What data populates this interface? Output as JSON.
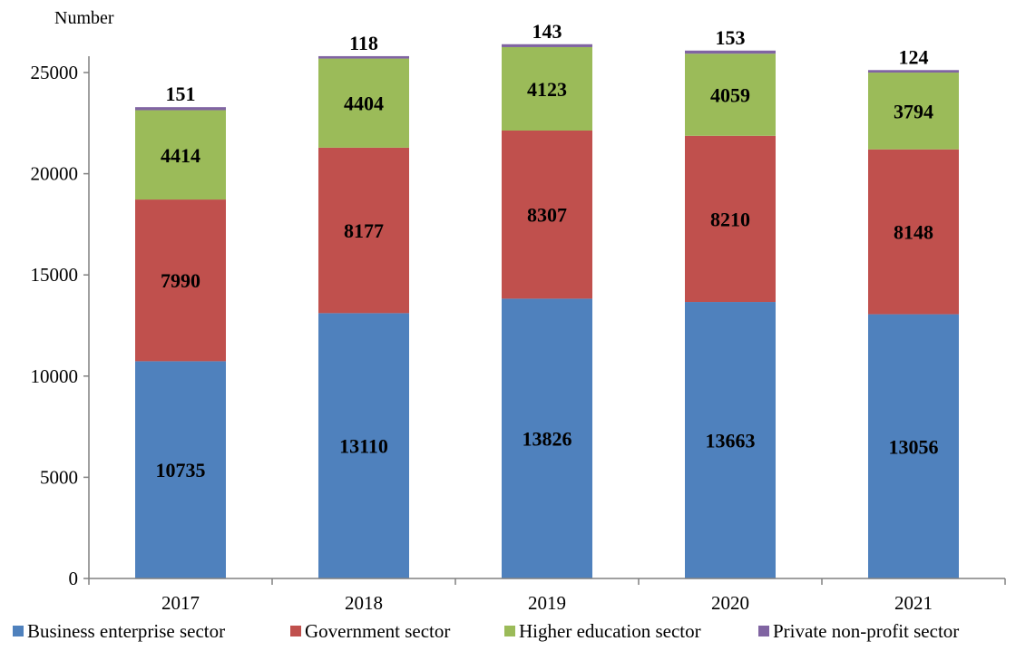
{
  "chart_data": {
    "type": "bar",
    "stacked": true,
    "ylabel": "Number",
    "ylim": [
      0,
      25000
    ],
    "yticks": [
      "0",
      "5000",
      "10000",
      "15000",
      "20000",
      "25000"
    ],
    "grid": false,
    "legend_position": "bottom",
    "categories": [
      "2017",
      "2018",
      "2019",
      "2020",
      "2021"
    ],
    "series": [
      {
        "name": "Business enterprise sector",
        "color": "#4f81bd",
        "values": [
          10735,
          13110,
          13826,
          13663,
          13056
        ]
      },
      {
        "name": "Government sector",
        "color": "#c0504d",
        "values": [
          7990,
          8177,
          8307,
          8210,
          8148
        ]
      },
      {
        "name": "Higher education sector",
        "color": "#9bbb59",
        "values": [
          4414,
          4404,
          4123,
          4059,
          3794
        ]
      },
      {
        "name": "Private non-profit sector",
        "color": "#8064a2",
        "values": [
          151,
          118,
          143,
          153,
          124
        ]
      }
    ]
  }
}
